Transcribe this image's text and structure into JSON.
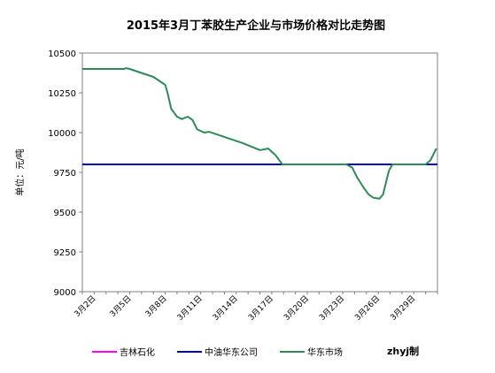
{
  "chart_data": {
    "type": "line",
    "title": "2015年3月丁苯胶生产企业与市场价格对比走势图",
    "ylabel": "单位：元/吨",
    "ylim": [
      9000,
      10500
    ],
    "yticks": [
      9000,
      9250,
      9500,
      9750,
      10000,
      10250,
      10500
    ],
    "xlim": [
      1,
      31
    ],
    "x_ticks": [
      {
        "day": 2,
        "label": "3月2日"
      },
      {
        "day": 5,
        "label": "3月5日"
      },
      {
        "day": 8,
        "label": "3月8日"
      },
      {
        "day": 11,
        "label": "3月11日"
      },
      {
        "day": 14,
        "label": "3月14日"
      },
      {
        "day": 17,
        "label": "3月17日"
      },
      {
        "day": 20,
        "label": "3月20日"
      },
      {
        "day": 23,
        "label": "3月23日"
      },
      {
        "day": 26,
        "label": "3月26日"
      },
      {
        "day": 29,
        "label": "3月29日"
      }
    ],
    "grid": false,
    "legend_position": "bottom",
    "credit": "zhyj制",
    "series": [
      {
        "name": "吉林石化",
        "color": "#ff00ff",
        "points": [
          [
            1,
            9800
          ],
          [
            31,
            9800
          ]
        ]
      },
      {
        "name": "中油华东公司",
        "color": "#0000cc",
        "points": [
          [
            1,
            9800
          ],
          [
            31,
            9800
          ]
        ]
      },
      {
        "name": "华东市场",
        "color": "#2e8b57",
        "points": [
          [
            1,
            10400
          ],
          [
            4.5,
            10400
          ],
          [
            4.7,
            10405
          ],
          [
            5,
            10400
          ],
          [
            6,
            10375
          ],
          [
            7,
            10350
          ],
          [
            7.5,
            10325
          ],
          [
            8,
            10300
          ],
          [
            8.2,
            10250
          ],
          [
            8.5,
            10150
          ],
          [
            9,
            10100
          ],
          [
            9.4,
            10085
          ],
          [
            9.9,
            10100
          ],
          [
            10.3,
            10080
          ],
          [
            10.7,
            10020
          ],
          [
            11.3,
            10000
          ],
          [
            11.7,
            10005
          ],
          [
            12.5,
            9985
          ],
          [
            13.5,
            9960
          ],
          [
            14.5,
            9935
          ],
          [
            15.5,
            9905
          ],
          [
            16,
            9890
          ],
          [
            16.4,
            9895
          ],
          [
            16.7,
            9900
          ],
          [
            17.3,
            9860
          ],
          [
            17.9,
            9800
          ],
          [
            19,
            9800
          ],
          [
            22,
            9800
          ],
          [
            23.3,
            9800
          ],
          [
            23.8,
            9780
          ],
          [
            24.2,
            9720
          ],
          [
            24.8,
            9650
          ],
          [
            25.2,
            9610
          ],
          [
            25.6,
            9590
          ],
          [
            26.1,
            9585
          ],
          [
            26.4,
            9610
          ],
          [
            26.7,
            9700
          ],
          [
            26.9,
            9760
          ],
          [
            27.2,
            9800
          ],
          [
            29,
            9800
          ],
          [
            30,
            9800
          ],
          [
            30.4,
            9825
          ],
          [
            30.7,
            9870
          ],
          [
            30.9,
            9900
          ]
        ]
      }
    ]
  }
}
